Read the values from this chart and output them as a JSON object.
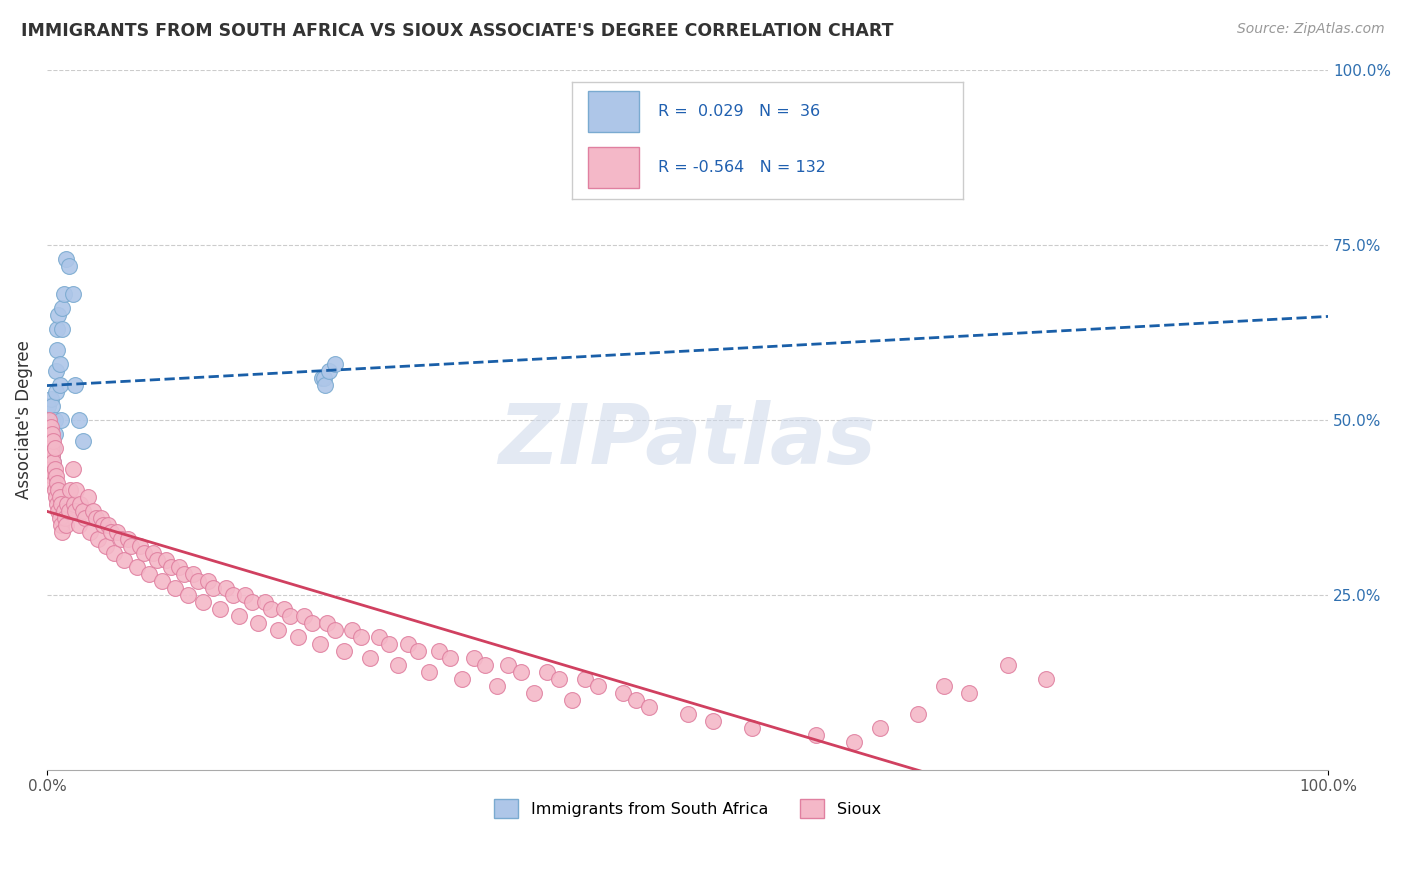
{
  "title": "IMMIGRANTS FROM SOUTH AFRICA VS SIOUX ASSOCIATE'S DEGREE CORRELATION CHART",
  "source": "Source: ZipAtlas.com",
  "ylabel": "Associate's Degree",
  "xlim": [
    0.0,
    1.0
  ],
  "ylim": [
    0.0,
    1.0
  ],
  "yticks_right": [
    0.25,
    0.5,
    0.75,
    1.0
  ],
  "ytick_labels_right": [
    "25.0%",
    "50.0%",
    "75.0%",
    "100.0%"
  ],
  "xtick_positions": [
    0.0,
    1.0
  ],
  "xtick_labels": [
    "0.0%",
    "100.0%"
  ],
  "blue_R": 0.029,
  "blue_N": 36,
  "pink_R": -0.564,
  "pink_N": 132,
  "blue_color": "#aec6e8",
  "blue_edge": "#7aaad0",
  "blue_line": "#1a5fa8",
  "pink_color": "#f4b8c8",
  "pink_edge": "#e080a0",
  "pink_line": "#d04060",
  "watermark_color": "#cdd8ea",
  "figsize": [
    14.06,
    8.92
  ],
  "dpi": 100,
  "blue_x": [
    0.001,
    0.001,
    0.002,
    0.002,
    0.003,
    0.003,
    0.003,
    0.004,
    0.004,
    0.004,
    0.005,
    0.005,
    0.006,
    0.006,
    0.007,
    0.007,
    0.008,
    0.008,
    0.009,
    0.01,
    0.01,
    0.011,
    0.012,
    0.012,
    0.013,
    0.015,
    0.017,
    0.02,
    0.022,
    0.025,
    0.028,
    0.215,
    0.216,
    0.217,
    0.22,
    0.225
  ],
  "blue_y": [
    0.5,
    0.52,
    0.48,
    0.5,
    0.46,
    0.5,
    0.53,
    0.45,
    0.5,
    0.52,
    0.44,
    0.46,
    0.48,
    0.5,
    0.54,
    0.57,
    0.6,
    0.63,
    0.65,
    0.55,
    0.58,
    0.5,
    0.63,
    0.66,
    0.68,
    0.73,
    0.72,
    0.68,
    0.55,
    0.5,
    0.47,
    0.56,
    0.56,
    0.55,
    0.57,
    0.58
  ],
  "pink_x": [
    0.001,
    0.001,
    0.002,
    0.002,
    0.002,
    0.003,
    0.003,
    0.003,
    0.004,
    0.004,
    0.004,
    0.005,
    0.005,
    0.005,
    0.006,
    0.006,
    0.006,
    0.007,
    0.007,
    0.008,
    0.008,
    0.009,
    0.009,
    0.01,
    0.01,
    0.011,
    0.011,
    0.012,
    0.013,
    0.014,
    0.015,
    0.016,
    0.017,
    0.018,
    0.02,
    0.021,
    0.022,
    0.023,
    0.025,
    0.026,
    0.028,
    0.03,
    0.032,
    0.034,
    0.036,
    0.038,
    0.04,
    0.042,
    0.044,
    0.046,
    0.048,
    0.05,
    0.052,
    0.055,
    0.058,
    0.06,
    0.063,
    0.066,
    0.07,
    0.073,
    0.076,
    0.08,
    0.083,
    0.086,
    0.09,
    0.093,
    0.097,
    0.1,
    0.103,
    0.107,
    0.11,
    0.114,
    0.118,
    0.122,
    0.126,
    0.13,
    0.135,
    0.14,
    0.145,
    0.15,
    0.155,
    0.16,
    0.165,
    0.17,
    0.175,
    0.18,
    0.185,
    0.19,
    0.196,
    0.201,
    0.207,
    0.213,
    0.219,
    0.225,
    0.232,
    0.238,
    0.245,
    0.252,
    0.259,
    0.267,
    0.274,
    0.282,
    0.29,
    0.298,
    0.306,
    0.315,
    0.324,
    0.333,
    0.342,
    0.351,
    0.36,
    0.37,
    0.38,
    0.39,
    0.4,
    0.41,
    0.42,
    0.43,
    0.45,
    0.46,
    0.47,
    0.5,
    0.52,
    0.55,
    0.6,
    0.63,
    0.65,
    0.68,
    0.7,
    0.72,
    0.75,
    0.78
  ],
  "pink_y": [
    0.45,
    0.48,
    0.44,
    0.47,
    0.5,
    0.43,
    0.46,
    0.49,
    0.42,
    0.45,
    0.48,
    0.41,
    0.44,
    0.47,
    0.4,
    0.43,
    0.46,
    0.39,
    0.42,
    0.38,
    0.41,
    0.37,
    0.4,
    0.36,
    0.39,
    0.35,
    0.38,
    0.34,
    0.37,
    0.36,
    0.35,
    0.38,
    0.37,
    0.4,
    0.43,
    0.38,
    0.37,
    0.4,
    0.35,
    0.38,
    0.37,
    0.36,
    0.39,
    0.34,
    0.37,
    0.36,
    0.33,
    0.36,
    0.35,
    0.32,
    0.35,
    0.34,
    0.31,
    0.34,
    0.33,
    0.3,
    0.33,
    0.32,
    0.29,
    0.32,
    0.31,
    0.28,
    0.31,
    0.3,
    0.27,
    0.3,
    0.29,
    0.26,
    0.29,
    0.28,
    0.25,
    0.28,
    0.27,
    0.24,
    0.27,
    0.26,
    0.23,
    0.26,
    0.25,
    0.22,
    0.25,
    0.24,
    0.21,
    0.24,
    0.23,
    0.2,
    0.23,
    0.22,
    0.19,
    0.22,
    0.21,
    0.18,
    0.21,
    0.2,
    0.17,
    0.2,
    0.19,
    0.16,
    0.19,
    0.18,
    0.15,
    0.18,
    0.17,
    0.14,
    0.17,
    0.16,
    0.13,
    0.16,
    0.15,
    0.12,
    0.15,
    0.14,
    0.11,
    0.14,
    0.13,
    0.1,
    0.13,
    0.12,
    0.11,
    0.1,
    0.09,
    0.08,
    0.07,
    0.06,
    0.05,
    0.04,
    0.06,
    0.08,
    0.12,
    0.11,
    0.15,
    0.13
  ]
}
